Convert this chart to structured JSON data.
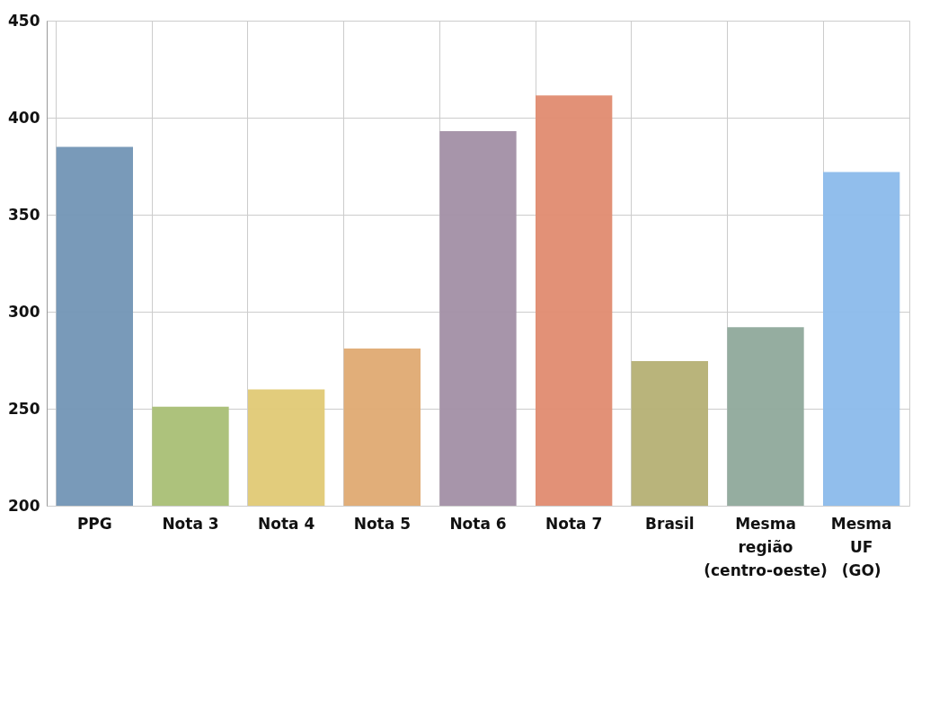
{
  "chart_data": {
    "type": "bar",
    "categories": [
      "PPG",
      "Nota 3",
      "Nota 4",
      "Nota 5",
      "Nota 6",
      "Nota 7",
      "Brasil",
      "Mesma região (centro-oeste)",
      "Mesma UF (GO)"
    ],
    "values": [
      385,
      251,
      260,
      281,
      393,
      411.5,
      274.5,
      292,
      372
    ],
    "colors": [
      "#7295b5",
      "#a9bf75",
      "#e0c975",
      "#dfaa72",
      "#a28fa5",
      "#e08b70",
      "#b5b074",
      "#8fa99b",
      "#8bbbeb"
    ],
    "ylim": [
      200,
      450
    ],
    "yticks": [
      200,
      250,
      300,
      350,
      400,
      450
    ],
    "grid": true
  }
}
